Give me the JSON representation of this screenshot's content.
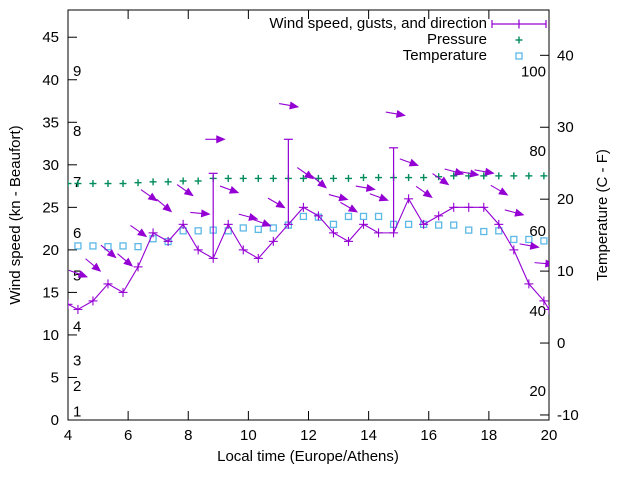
{
  "chart_data": {
    "type": "line",
    "title": "",
    "xlabel": "Local time (Europe/Athens)",
    "ylabel_left": "Wind speed (kn - Beaufort)",
    "ylabel_right": "Temperature (C - F)",
    "grid": false,
    "x_range": [
      4,
      20
    ],
    "x_ticks": [
      4,
      6,
      8,
      10,
      12,
      14,
      16,
      18,
      20
    ],
    "wind_axis_range_kn": [
      0,
      48.2
    ],
    "wind_ticks_kn": [
      0,
      5,
      10,
      15,
      20,
      25,
      30,
      35,
      40,
      45
    ],
    "beaufort_inner_labels": [
      {
        "label": "1",
        "kn": 1
      },
      {
        "label": "2",
        "kn": 4
      },
      {
        "label": "3",
        "kn": 7
      },
      {
        "label": "4",
        "kn": 11
      },
      {
        "label": "5",
        "kn": 17
      },
      {
        "label": "6",
        "kn": 22
      },
      {
        "label": "7",
        "kn": 28
      },
      {
        "label": "8",
        "kn": 34
      },
      {
        "label": "9",
        "kn": 41
      }
    ],
    "temp_axis_range_c": [
      -10.7,
      46.3
    ],
    "temp_ticks_c": [
      -10,
      0,
      10,
      20,
      30,
      40
    ],
    "fahrenheit_inner_labels": [
      20,
      40,
      60,
      80,
      100
    ],
    "legend": {
      "position": "top-right-inside",
      "entries": [
        {
          "label": "Wind speed, gusts, and direction",
          "series": "wind"
        },
        {
          "label": "Pressure",
          "series": "pressure"
        },
        {
          "label": "Temperature",
          "series": "temperature"
        }
      ]
    },
    "colors": {
      "wind": "#9400d3",
      "pressure": "#008c5a",
      "temperature": "#5cb8e6",
      "axis": "#000000"
    },
    "x_hours": [
      4.33,
      4.83,
      5.33,
      5.83,
      6.33,
      6.83,
      7.33,
      7.83,
      8.33,
      8.83,
      9.33,
      9.83,
      10.33,
      10.83,
      11.33,
      11.83,
      12.33,
      12.83,
      13.33,
      13.83,
      14.33,
      14.83,
      15.33,
      15.83,
      16.33,
      16.83,
      17.33,
      17.83,
      18.33,
      18.83,
      19.33,
      19.83
    ],
    "series": {
      "wind_kn": [
        13,
        14,
        16,
        15,
        18,
        22,
        21,
        23,
        20,
        19,
        23,
        20,
        19,
        21,
        23,
        25,
        24,
        22,
        21,
        23,
        22,
        22,
        26,
        23,
        24,
        25,
        25,
        25,
        23,
        20,
        16,
        14
      ],
      "wind_line_edges": {
        "start": [
          4.0,
          13.6
        ],
        "end": [
          20.0,
          13.0
        ]
      },
      "gusts_kn": [
        [
          8.83,
          19,
          29
        ],
        [
          11.33,
          23,
          33
        ],
        [
          14.83,
          22,
          32
        ]
      ],
      "wind_direction_arrows": [
        [
          4.34,
          17.2,
          20
        ],
        [
          4.84,
          18.2,
          40
        ],
        [
          5.35,
          19.8,
          40
        ],
        [
          5.9,
          18.8,
          40
        ],
        [
          6.35,
          22.2,
          35
        ],
        [
          6.7,
          26.4,
          35
        ],
        [
          7.2,
          25.2,
          40
        ],
        [
          7.9,
          27.0,
          35
        ],
        [
          8.4,
          24.3,
          5
        ],
        [
          8.9,
          33.0,
          0
        ],
        [
          9.37,
          27.1,
          20
        ],
        [
          10.0,
          23.9,
          15
        ],
        [
          10.45,
          23.2,
          20
        ],
        [
          10.94,
          25.5,
          30
        ],
        [
          11.35,
          37.0,
          10
        ],
        [
          11.9,
          29.0,
          35
        ],
        [
          12.35,
          28.0,
          40
        ],
        [
          13.0,
          26.2,
          15
        ],
        [
          13.35,
          25.0,
          30
        ],
        [
          13.9,
          27.3,
          10
        ],
        [
          14.35,
          26.2,
          20
        ],
        [
          14.9,
          36.0,
          10
        ],
        [
          15.35,
          30.3,
          20
        ],
        [
          15.85,
          26.8,
          35
        ],
        [
          16.4,
          28.3,
          35
        ],
        [
          16.85,
          29.2,
          15
        ],
        [
          17.35,
          29.0,
          10
        ],
        [
          17.85,
          29.2,
          10
        ],
        [
          18.35,
          27.0,
          30
        ],
        [
          18.85,
          24.4,
          15
        ],
        [
          19.35,
          20.5,
          10
        ],
        [
          19.85,
          18.4,
          5
        ]
      ],
      "pressure_plotted_kn_axis": [
        27.8,
        27.8,
        27.8,
        27.8,
        27.9,
        28.0,
        28.0,
        28.1,
        28.1,
        28.4,
        28.4,
        28.4,
        28.4,
        28.4,
        28.4,
        28.4,
        28.4,
        28.4,
        28.4,
        28.5,
        28.5,
        28.5,
        28.5,
        28.5,
        28.6,
        28.7,
        28.7,
        28.7,
        28.7,
        28.7,
        28.7,
        28.7
      ],
      "pressure_edge_point": [
        4.0,
        27.8
      ],
      "temperature_c": [
        13.5,
        13.5,
        13.4,
        13.5,
        13.4,
        14.5,
        14.1,
        15.6,
        15.6,
        15.7,
        15.6,
        16.0,
        15.8,
        16.0,
        16.4,
        17.6,
        17.5,
        16.5,
        17.6,
        17.6,
        17.6,
        16.5,
        16.5,
        16.5,
        16.4,
        16.4,
        15.7,
        15.5,
        15.6,
        14.4,
        14.4,
        14.2
      ]
    }
  }
}
